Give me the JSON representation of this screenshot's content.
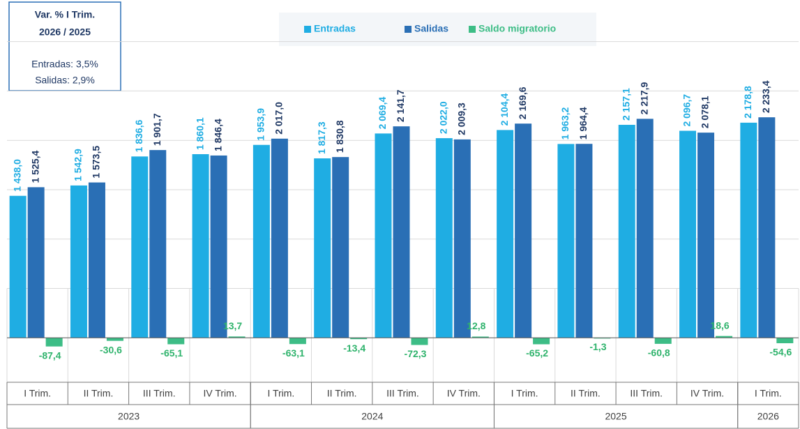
{
  "chart_data": {
    "type": "bar",
    "annotation": {
      "title_1": "Var. % I Trim.",
      "title_2": "2026  / 2025",
      "line_1": "Entradas:  3,5%",
      "line_2": "Salidas:  2,9%"
    },
    "categories": [
      "I Trim.",
      "II Trim.",
      "III Trim.",
      "IV Trim.",
      "I Trim.",
      "II Trim.",
      "III Trim.",
      "IV Trim.",
      "I Trim.",
      "II Trim.",
      "III Trim.",
      "IV Trim.",
      "I Trim."
    ],
    "groups": [
      {
        "label": "2023",
        "size": 4
      },
      {
        "label": "2024",
        "size": 4
      },
      {
        "label": "2025",
        "size": 4
      },
      {
        "label": "2026",
        "size": 1
      }
    ],
    "series": [
      {
        "name": "Entradas",
        "color": "#1fade3",
        "values": [
          1438.0,
          1542.9,
          1836.6,
          1860.1,
          1953.9,
          1817.3,
          2069.4,
          2022.0,
          2104.4,
          1963.2,
          2157.1,
          2096.7,
          2178.8
        ],
        "value_labels": [
          "1 438,0",
          "1 542,9",
          "1 836,6",
          "1 860,1",
          "1 953,9",
          "1 817,3",
          "2 069,4",
          "2 022,0",
          "2 104,4",
          "1 963,2",
          "2 157,1",
          "2 096,7",
          "2 178,8"
        ]
      },
      {
        "name": "Salidas",
        "color": "#2a6fb5",
        "values": [
          1525.4,
          1573.5,
          1901.7,
          1846.4,
          2017.0,
          1830.8,
          2141.7,
          2009.3,
          2169.6,
          1964.4,
          2217.9,
          2078.1,
          2233.4
        ],
        "value_labels": [
          "1 525,4",
          "1 573,5",
          "1 901,7",
          "1 846,4",
          "2 017,0",
          "1 830,8",
          "2 141,7",
          "2 009,3",
          "2 169,6",
          "1 964,4",
          "2 217,9",
          "2 078,1",
          "2 233,4"
        ]
      },
      {
        "name": "Saldo migratorio",
        "color": "#3dbd86",
        "values": [
          -87.4,
          -30.6,
          -65.1,
          13.7,
          -63.1,
          -13.4,
          -72.3,
          12.8,
          -65.2,
          -1.3,
          -60.8,
          18.6,
          -54.6
        ],
        "value_labels": [
          "-87,4",
          "-30,6",
          "-65,1",
          "13,7",
          "-63,1",
          "-13,4",
          "-72,3",
          "12,8",
          "-65,2",
          "-1,3",
          "-60,8",
          "18,6",
          "-54,6"
        ]
      }
    ],
    "ylim": [
      -450,
      3280
    ],
    "yticks": [
      0,
      500,
      1000,
      1500,
      2000,
      2500,
      3000
    ],
    "grid": true
  }
}
